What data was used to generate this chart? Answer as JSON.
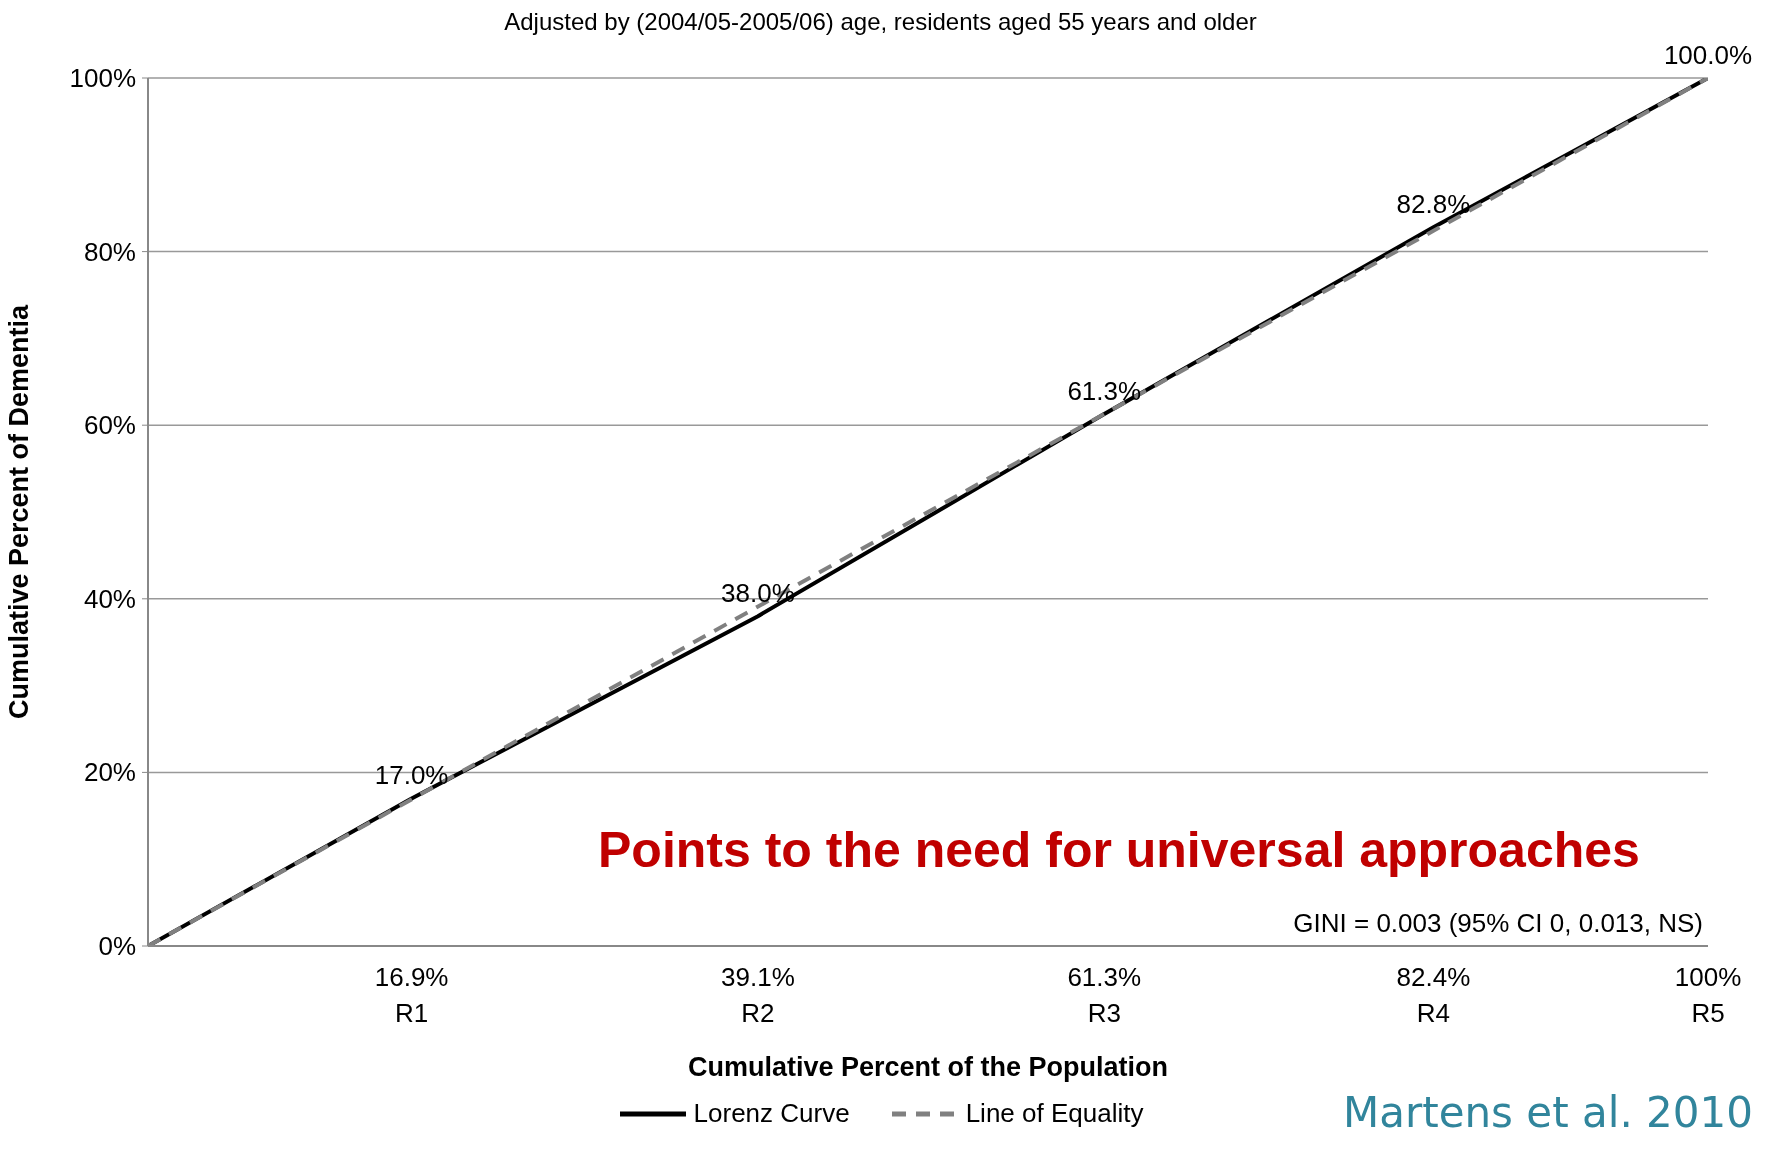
{
  "chart_data": {
    "type": "line",
    "subtitle": "Adjusted by (2004/05-2005/06) age, residents aged 55 years and older",
    "xlabel": "Cumulative Percent of the Population",
    "ylabel": "Cumulative Percent of Dementia",
    "xlim": [
      0,
      100
    ],
    "xticks": [
      {
        "value": 16.9,
        "label": "16.9%"
      },
      {
        "value": 39.1,
        "label": "39.1%"
      },
      {
        "value": 61.3,
        "label": "61.3%"
      },
      {
        "value": 82.4,
        "label": "82.4%"
      },
      {
        "value": 100,
        "label": "100%"
      }
    ],
    "ylim": [
      0,
      100
    ],
    "yticks": [
      {
        "value": 0,
        "label": "0%"
      },
      {
        "value": 20,
        "label": "20%"
      },
      {
        "value": 40,
        "label": "40%"
      },
      {
        "value": 60,
        "label": "60%"
      },
      {
        "value": 80,
        "label": "80%"
      },
      {
        "value": 100,
        "label": "100%"
      }
    ],
    "grid": "y",
    "legend": "bottom",
    "marker": "none",
    "series": [
      {
        "name": "Lorenz Curve",
        "color": "#000000",
        "line_style": "solid",
        "x": [
          0,
          16.9,
          39.1,
          61.3,
          82.4,
          100
        ],
        "values": [
          0,
          17.0,
          38.0,
          61.3,
          82.8,
          100.0
        ],
        "value_labels": [
          null,
          "17.0%",
          "38.0%",
          "61.3%",
          "82.8%",
          "100.0%"
        ]
      },
      {
        "name": "Line of Equality",
        "color": "#808080",
        "line_style": "dashed",
        "x": [
          0,
          100
        ],
        "values": [
          0,
          100
        ]
      }
    ],
    "annotations": [
      "Points to the need for universal approaches",
      "GINI = 0.003 (95% CI 0, 0.013, NS)",
      "Martens et al. 2010",
      "R1",
      "R2",
      "R3",
      "R4",
      "R5"
    ]
  }
}
